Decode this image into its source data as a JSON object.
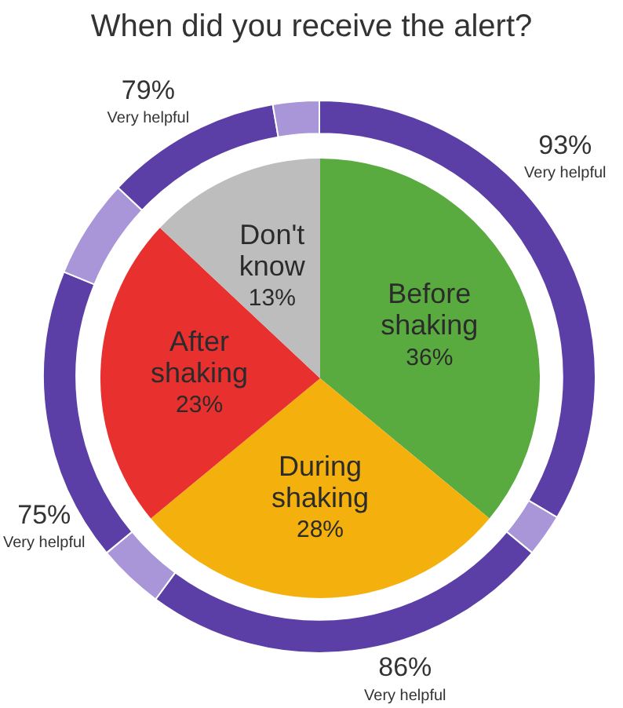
{
  "chart_data": [
    {
      "type": "pie",
      "title": "When did you receive the alert?",
      "categories": [
        "Before shaking",
        "During shaking",
        "After shaking",
        "Don't know"
      ],
      "values": [
        36,
        28,
        23,
        13
      ],
      "colors": [
        "#5aab3f",
        "#f4b10e",
        "#e8302f",
        "#bdbdbd"
      ],
      "value_labels": [
        "36%",
        "28%",
        "23%",
        "13%"
      ]
    },
    {
      "type": "donut",
      "categories": [
        "Very helpful",
        null,
        "Very helpful",
        null,
        "Very helpful",
        null,
        "Very helpful",
        null
      ],
      "values": [
        33.5,
        2.5,
        24.1,
        3.9,
        17.2,
        5.8,
        10.3,
        2.7
      ],
      "colors": [
        "#5b3fa6",
        "#a996d8",
        "#5b3fa6",
        "#a996d8",
        "#5b3fa6",
        "#a996d8",
        "#5b3fa6",
        "#a996d8"
      ],
      "annotations": [
        "93%",
        "86%",
        "75%",
        "79%"
      ]
    }
  ]
}
